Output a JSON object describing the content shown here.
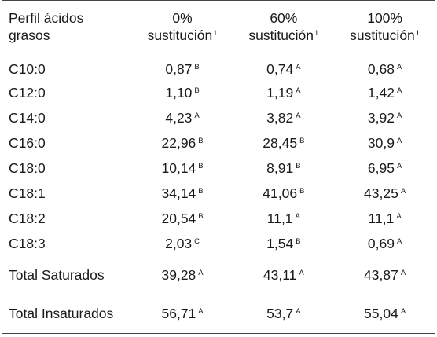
{
  "header": {
    "col1": [
      "Perfil ácidos",
      "grasos"
    ],
    "col2": [
      "0%",
      "sustitución"
    ],
    "col3": [
      "60%",
      "sustitución"
    ],
    "col4": [
      "100%",
      "sustitución"
    ],
    "footnote_ref": "1"
  },
  "rows": [
    {
      "label": "C10:0",
      "v0": "0,87",
      "m0": "B",
      "v60": "0,74",
      "m60": "A",
      "v100": "0,68",
      "m100": "A"
    },
    {
      "label": "C12:0",
      "v0": "1,10",
      "m0": "B",
      "v60": "1,19",
      "m60": "A",
      "v100": "1,42",
      "m100": "A"
    },
    {
      "label": "C14:0",
      "v0": "4,23",
      "m0": "A",
      "v60": "3,82",
      "m60": "A",
      "v100": "3,92",
      "m100": "A"
    },
    {
      "label": "C16:0",
      "v0": "22,96",
      "m0": "B",
      "v60": "28,45",
      "m60": "B",
      "v100": "30,9",
      "m100": "A"
    },
    {
      "label": "C18:0",
      "v0": "10,14",
      "m0": "B",
      "v60": "8,91",
      "m60": "B",
      "v100": "6,95",
      "m100": "A"
    },
    {
      "label": "C18:1",
      "v0": "34,14",
      "m0": "B",
      "v60": "41,06",
      "m60": "B",
      "v100": "43,25",
      "m100": "A"
    },
    {
      "label": "C18:2",
      "v0": "20,54",
      "m0": "B",
      "v60": "11,1",
      "m60": "A",
      "v100": "11,1",
      "m100": "A"
    },
    {
      "label": "C18:3",
      "v0": "2,03",
      "m0": "C",
      "v60": "1,54",
      "m60": "B",
      "v100": "0,69",
      "m100": "A"
    }
  ],
  "totals": [
    {
      "label": "Total Saturados",
      "v0": "39,28",
      "m0": "A",
      "v60": "43,11",
      "m60": "A",
      "v100": "43,87",
      "m100": "A"
    },
    {
      "label": "Total Insaturados",
      "v0": "56,71",
      "m0": "A",
      "v60": "53,7",
      "m60": "A",
      "v100": "55,04",
      "m100": "A"
    }
  ]
}
